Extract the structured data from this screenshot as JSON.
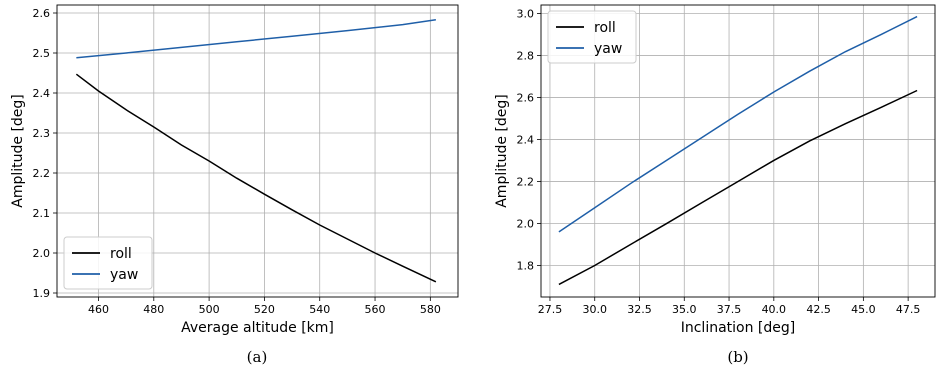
{
  "chart_data": [
    {
      "type": "line",
      "caption": "(a)",
      "xlabel": "Average altitude [km]",
      "ylabel": "Amplitude [deg]",
      "xlim": [
        445,
        590
      ],
      "ylim": [
        1.89,
        2.62
      ],
      "xticks": [
        460,
        480,
        500,
        520,
        540,
        560,
        580
      ],
      "yticks": [
        1.9,
        2.0,
        2.1,
        2.2,
        2.3,
        2.4,
        2.5,
        2.6
      ],
      "ytick_decimals": 1,
      "grid": true,
      "legend_position": "lower-left",
      "series": [
        {
          "name": "roll",
          "color": "#000000",
          "x": [
            452,
            460,
            470,
            480,
            490,
            500,
            510,
            520,
            530,
            540,
            550,
            560,
            570,
            582
          ],
          "y": [
            2.447,
            2.405,
            2.358,
            2.315,
            2.27,
            2.23,
            2.187,
            2.147,
            2.108,
            2.07,
            2.035,
            2.0,
            1.967,
            1.928
          ]
        },
        {
          "name": "yaw",
          "color": "#1f5fa8",
          "x": [
            452,
            470,
            490,
            510,
            530,
            550,
            570,
            582
          ],
          "y": [
            2.488,
            2.5,
            2.514,
            2.528,
            2.542,
            2.556,
            2.571,
            2.583
          ]
        }
      ]
    },
    {
      "type": "line",
      "caption": "(b)",
      "xlabel": "Inclination [deg]",
      "ylabel": "Amplitude [deg]",
      "xlim": [
        27,
        49
      ],
      "ylim": [
        1.65,
        3.04
      ],
      "xticks": [
        27.5,
        30.0,
        32.5,
        35.0,
        37.5,
        40.0,
        42.5,
        45.0,
        47.5
      ],
      "yticks": [
        1.8,
        2.0,
        2.2,
        2.4,
        2.6,
        2.8,
        3.0
      ],
      "ytick_decimals": 1,
      "xtick_decimals": 1,
      "grid": true,
      "legend_position": "upper-left",
      "series": [
        {
          "name": "roll",
          "color": "#000000",
          "x": [
            28,
            30,
            32,
            34,
            36,
            38,
            40,
            42,
            44,
            46,
            48
          ],
          "y": [
            1.71,
            1.8,
            1.9,
            1.999,
            2.1,
            2.2,
            2.3,
            2.393,
            2.475,
            2.553,
            2.633
          ]
        },
        {
          "name": "yaw",
          "color": "#1f5fa8",
          "x": [
            28,
            30,
            32,
            34,
            36,
            38,
            40,
            42,
            44,
            46,
            48
          ],
          "y": [
            1.96,
            2.075,
            2.19,
            2.3,
            2.41,
            2.52,
            2.626,
            2.725,
            2.818,
            2.9,
            2.985
          ]
        }
      ]
    }
  ]
}
